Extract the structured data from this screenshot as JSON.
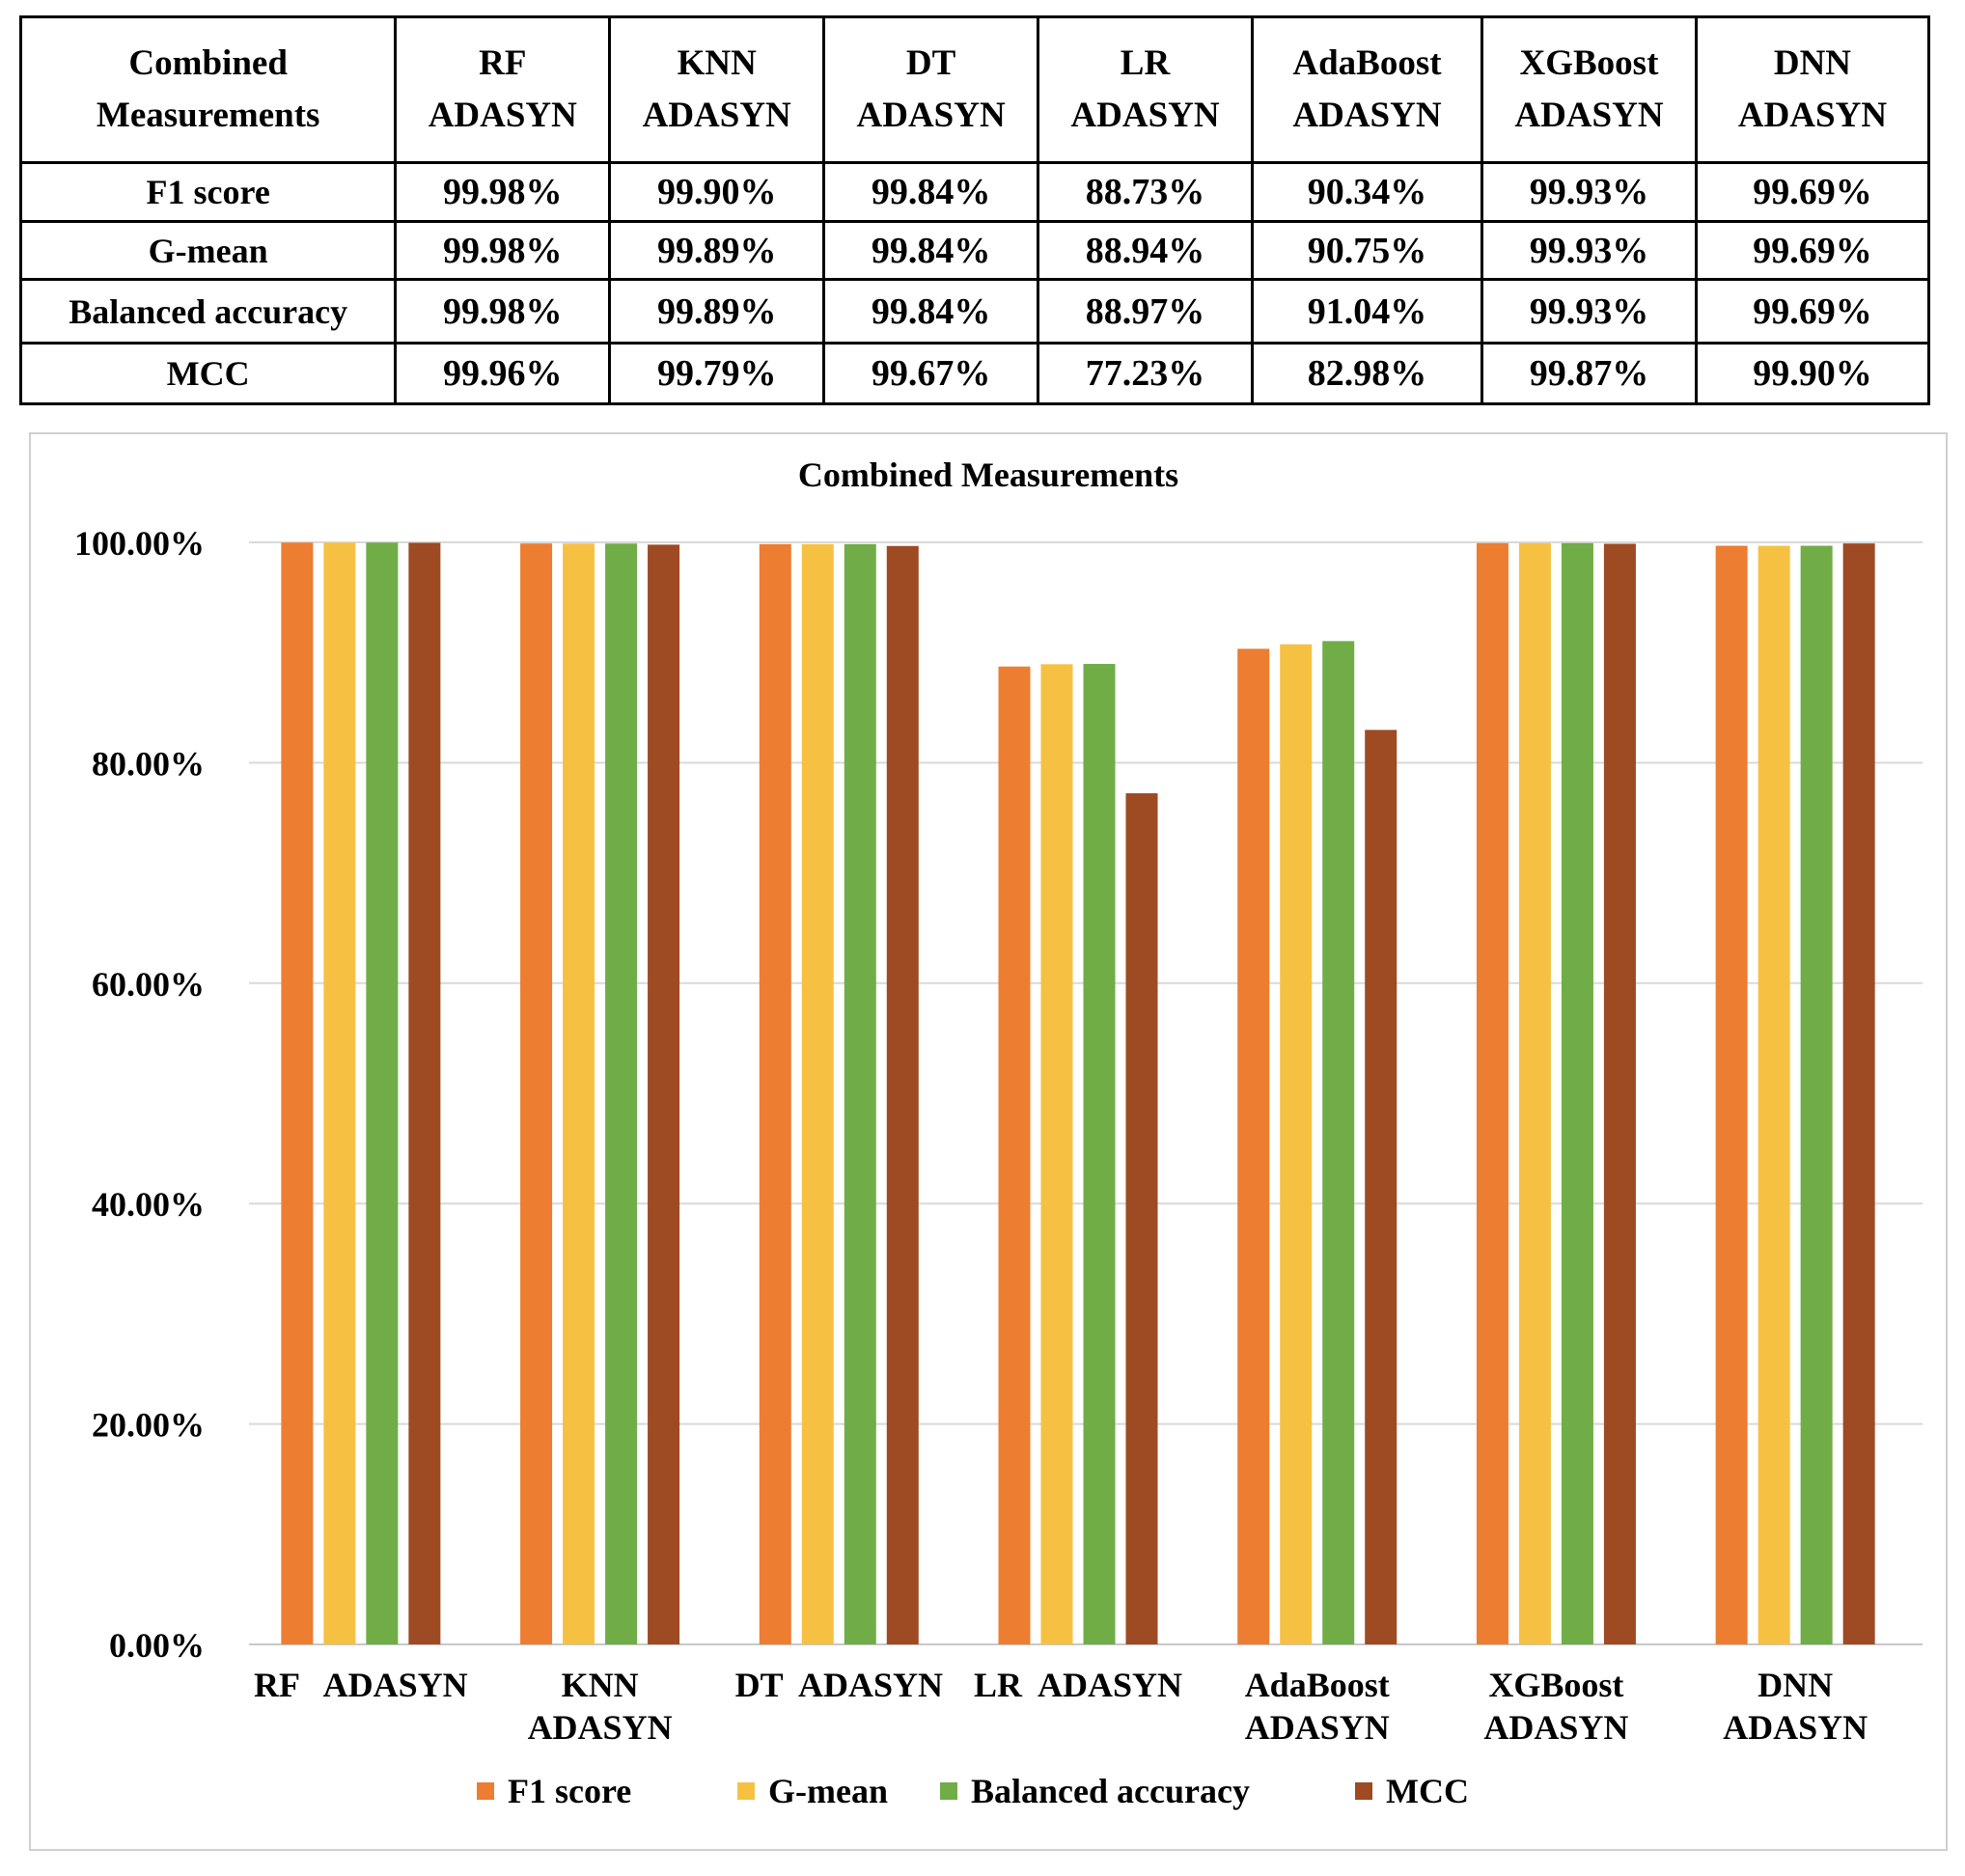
{
  "table": {
    "header_first": [
      "Combined",
      "Measurements"
    ],
    "columns": [
      [
        "RF",
        "ADASYN"
      ],
      [
        "KNN",
        "ADASYN"
      ],
      [
        "DT",
        "ADASYN"
      ],
      [
        "LR",
        "ADASYN"
      ],
      [
        "AdaBoost",
        "ADASYN"
      ],
      [
        "XGBoost",
        "ADASYN"
      ],
      [
        "DNN",
        "ADASYN"
      ]
    ],
    "rows": [
      {
        "label": "F1 score",
        "values": [
          "99.98%",
          "99.90%",
          "99.84%",
          "88.73%",
          "90.34%",
          "99.93%",
          "99.69%"
        ]
      },
      {
        "label": "G-mean",
        "values": [
          "99.98%",
          "99.89%",
          "99.84%",
          "88.94%",
          "90.75%",
          "99.93%",
          "99.69%"
        ]
      },
      {
        "label": "Balanced accuracy",
        "values": [
          "99.98%",
          "99.89%",
          "99.84%",
          "88.97%",
          "91.04%",
          "99.93%",
          "99.69%"
        ]
      },
      {
        "label": "MCC",
        "values": [
          "99.96%",
          "99.79%",
          "99.67%",
          "77.23%",
          "82.98%",
          "99.87%",
          "99.90%"
        ]
      }
    ]
  },
  "chart_data": {
    "type": "bar",
    "title": "Combined Measurements",
    "categories": [
      [
        "RF   ADASYN"
      ],
      [
        "KNN",
        "ADASYN"
      ],
      [
        "DT  ADASYN"
      ],
      [
        "LR  ADASYN"
      ],
      [
        "AdaBoost",
        "ADASYN"
      ],
      [
        "XGBoost",
        "ADASYN"
      ],
      [
        "DNN",
        "ADASYN"
      ]
    ],
    "series": [
      {
        "name": "F1 score",
        "color": "#ED7D31",
        "values": [
          99.98,
          99.9,
          99.84,
          88.73,
          90.34,
          99.93,
          99.69
        ]
      },
      {
        "name": "G-mean",
        "color": "#F6C143",
        "values": [
          99.98,
          99.89,
          99.84,
          88.94,
          90.75,
          99.93,
          99.69
        ]
      },
      {
        "name": "Balanced accuracy",
        "color": "#70AD47",
        "values": [
          99.98,
          99.89,
          99.84,
          88.97,
          91.04,
          99.93,
          99.69
        ]
      },
      {
        "name": "MCC",
        "color": "#9E4A23",
        "values": [
          99.96,
          99.79,
          99.67,
          77.23,
          82.98,
          99.87,
          99.9
        ]
      }
    ],
    "ylim": [
      0,
      100
    ],
    "yticks": [
      "0.00%",
      "20.00%",
      "40.00%",
      "60.00%",
      "80.00%",
      "100.00%"
    ],
    "grid": true,
    "legend": "bottom"
  }
}
